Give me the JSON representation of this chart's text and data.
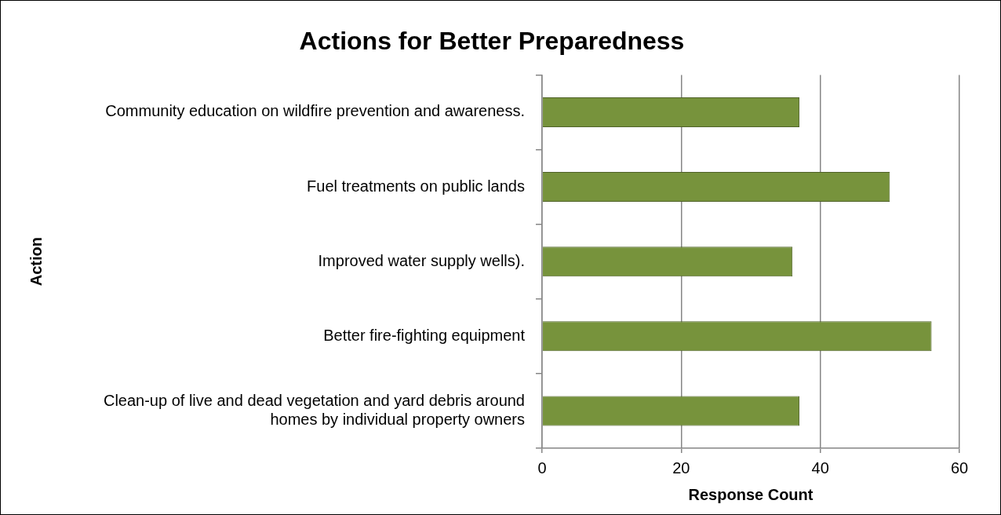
{
  "chart_data": {
    "type": "bar",
    "orientation": "horizontal",
    "title": "Actions for Better Preparedness",
    "xlabel": "Response Count",
    "ylabel": "Action",
    "categories": [
      "Community education on wildfire prevention and awareness.",
      "Fuel treatments on public lands",
      "Improved water supply wells).",
      "Better fire-fighting equipment",
      "Clean-up of live and dead vegetation and yard debris around homes by individual property owners"
    ],
    "values": [
      37,
      50,
      36,
      56,
      37
    ],
    "color": "#77933c",
    "xlim": [
      0,
      60
    ],
    "xticks": [
      0,
      20,
      40,
      60
    ],
    "grid": "x",
    "legend": false
  }
}
